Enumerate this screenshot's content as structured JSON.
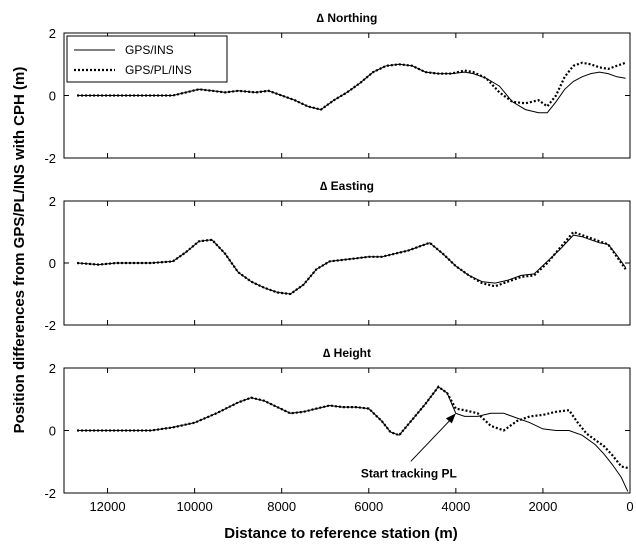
{
  "chart_data": {
    "type": "line",
    "ylabel": "Position differences from GPS/PL/INS with CPH (m)",
    "xlabel": "Distance to reference station (m)",
    "xlim": [
      13000,
      0
    ],
    "x_ticks": [
      12000,
      10000,
      8000,
      6000,
      4000,
      2000,
      0
    ],
    "x_tick_labels": [
      "12000",
      "10000",
      "8000",
      "6000",
      "4000",
      "2000",
      "0"
    ],
    "legend": {
      "placement": "top-left of first panel",
      "entries": [
        {
          "label": "GPS/INS",
          "style": "solid"
        },
        {
          "label": "GPS/PL/INS",
          "style": "dotted"
        }
      ]
    },
    "panels": [
      {
        "title": "∆ Northing",
        "ylim": [
          -2,
          2
        ],
        "y_ticks": [
          2,
          0,
          -2
        ],
        "y_tick_labels": [
          "2",
          "0",
          "-2"
        ],
        "series": [
          {
            "name": "GPS/INS",
            "style": "solid",
            "x": [
              12700,
              11500,
              10500,
              10200,
              9900,
              9600,
              9300,
              9000,
              8600,
              8300,
              8000,
              7700,
              7400,
              7100,
              6800,
              6500,
              6200,
              5900,
              5600,
              5300,
              5000,
              4700,
              4400,
              4100,
              3800,
              3600,
              3300,
              3000,
              2700,
              2400,
              2100,
              1900,
              1700,
              1500,
              1300,
              1100,
              900,
              700,
              500,
              300,
              100
            ],
            "y": [
              0.0,
              0.0,
              0.0,
              0.1,
              0.2,
              0.15,
              0.1,
              0.15,
              0.1,
              0.15,
              0.0,
              -0.15,
              -0.35,
              -0.45,
              -0.15,
              0.1,
              0.4,
              0.75,
              0.95,
              1.0,
              0.95,
              0.75,
              0.7,
              0.7,
              0.75,
              0.7,
              0.55,
              0.3,
              -0.2,
              -0.45,
              -0.55,
              -0.55,
              -0.2,
              0.2,
              0.45,
              0.6,
              0.7,
              0.75,
              0.7,
              0.6,
              0.55
            ]
          },
          {
            "name": "GPS/PL/INS",
            "style": "dotted",
            "x": [
              12700,
              11500,
              10500,
              10200,
              9900,
              9600,
              9300,
              9000,
              8600,
              8300,
              8000,
              7700,
              7400,
              7100,
              6800,
              6500,
              6200,
              5900,
              5600,
              5300,
              5000,
              4700,
              4400,
              4100,
              3800,
              3600,
              3300,
              3000,
              2700,
              2400,
              2100,
              1900,
              1700,
              1500,
              1300,
              1100,
              900,
              700,
              500,
              300,
              100
            ],
            "y": [
              0.0,
              0.0,
              0.0,
              0.1,
              0.2,
              0.15,
              0.1,
              0.15,
              0.1,
              0.15,
              0.0,
              -0.15,
              -0.35,
              -0.45,
              -0.15,
              0.1,
              0.4,
              0.75,
              0.95,
              1.0,
              0.95,
              0.75,
              0.7,
              0.7,
              0.8,
              0.75,
              0.55,
              0.1,
              -0.2,
              -0.25,
              -0.15,
              -0.35,
              0.0,
              0.6,
              0.95,
              1.05,
              1.0,
              0.9,
              0.85,
              0.95,
              1.05
            ]
          }
        ]
      },
      {
        "title": "∆ Easting",
        "ylim": [
          -2,
          2
        ],
        "y_ticks": [
          2,
          0,
          -2
        ],
        "y_tick_labels": [
          "2",
          "0",
          "-2"
        ],
        "series": [
          {
            "name": "GPS/INS",
            "style": "solid",
            "x": [
              12700,
              12200,
              11800,
              11000,
              10500,
              10200,
              9900,
              9600,
              9300,
              9000,
              8700,
              8400,
              8100,
              7800,
              7500,
              7200,
              6900,
              6600,
              6300,
              6000,
              5700,
              5400,
              5100,
              4800,
              4600,
              4300,
              4000,
              3700,
              3400,
              3100,
              2800,
              2500,
              2200,
              1900,
              1600,
              1300,
              1100,
              900,
              700,
              500,
              300,
              100
            ],
            "y": [
              0.0,
              -0.05,
              0.0,
              0.0,
              0.05,
              0.35,
              0.7,
              0.75,
              0.3,
              -0.3,
              -0.6,
              -0.8,
              -0.95,
              -1.0,
              -0.7,
              -0.2,
              0.05,
              0.1,
              0.15,
              0.2,
              0.2,
              0.3,
              0.4,
              0.55,
              0.65,
              0.3,
              -0.1,
              -0.4,
              -0.6,
              -0.65,
              -0.55,
              -0.4,
              -0.35,
              0.05,
              0.45,
              0.9,
              0.85,
              0.75,
              0.65,
              0.6,
              0.25,
              -0.15
            ]
          },
          {
            "name": "GPS/PL/INS",
            "style": "dotted",
            "x": [
              12700,
              12200,
              11800,
              11000,
              10500,
              10200,
              9900,
              9600,
              9300,
              9000,
              8700,
              8400,
              8100,
              7800,
              7500,
              7200,
              6900,
              6600,
              6300,
              6000,
              5700,
              5400,
              5100,
              4800,
              4600,
              4300,
              4000,
              3700,
              3400,
              3100,
              2800,
              2500,
              2200,
              1900,
              1600,
              1300,
              1100,
              900,
              700,
              500,
              300,
              100
            ],
            "y": [
              0.0,
              -0.05,
              0.0,
              0.0,
              0.05,
              0.35,
              0.7,
              0.75,
              0.3,
              -0.3,
              -0.6,
              -0.8,
              -0.95,
              -1.0,
              -0.7,
              -0.2,
              0.05,
              0.1,
              0.15,
              0.2,
              0.2,
              0.3,
              0.4,
              0.55,
              0.65,
              0.3,
              -0.1,
              -0.4,
              -0.65,
              -0.75,
              -0.6,
              -0.45,
              -0.4,
              0.0,
              0.5,
              1.0,
              0.9,
              0.8,
              0.7,
              0.6,
              0.2,
              -0.2
            ]
          }
        ]
      },
      {
        "title": "∆ Height",
        "ylim": [
          -2,
          2
        ],
        "y_ticks": [
          2,
          0,
          -2
        ],
        "y_tick_labels": [
          "2",
          "0",
          "-2"
        ],
        "annotation": {
          "text": "Start tracking PL",
          "points_to_x": 4000,
          "points_to_y": 0.55
        },
        "series": [
          {
            "name": "GPS/INS",
            "style": "solid",
            "x": [
              12700,
              12000,
              11000,
              10500,
              10000,
              9500,
              9000,
              8700,
              8400,
              8100,
              7800,
              7500,
              7200,
              6900,
              6600,
              6300,
              6000,
              5700,
              5500,
              5300,
              5000,
              4700,
              4400,
              4200,
              4000,
              3800,
              3500,
              3200,
              2900,
              2600,
              2300,
              2000,
              1700,
              1400,
              1100,
              800,
              600,
              400,
              200,
              50
            ],
            "y": [
              0.0,
              0.0,
              0.0,
              0.1,
              0.25,
              0.55,
              0.9,
              1.05,
              0.95,
              0.75,
              0.55,
              0.6,
              0.7,
              0.8,
              0.75,
              0.75,
              0.7,
              0.3,
              -0.05,
              -0.15,
              0.35,
              0.85,
              1.4,
              1.2,
              0.55,
              0.45,
              0.45,
              0.55,
              0.55,
              0.4,
              0.25,
              0.05,
              0.0,
              0.0,
              -0.15,
              -0.45,
              -0.75,
              -1.1,
              -1.5,
              -1.95
            ]
          },
          {
            "name": "GPS/PL/INS",
            "style": "dotted",
            "x": [
              12700,
              12000,
              11000,
              10500,
              10000,
              9500,
              9000,
              8700,
              8400,
              8100,
              7800,
              7500,
              7200,
              6900,
              6600,
              6300,
              6000,
              5700,
              5500,
              5300,
              5000,
              4700,
              4400,
              4200,
              4000,
              3800,
              3500,
              3200,
              2900,
              2600,
              2300,
              2000,
              1700,
              1400,
              1200,
              1000,
              800,
              600,
              400,
              200,
              50
            ],
            "y": [
              0.0,
              0.0,
              0.0,
              0.1,
              0.25,
              0.55,
              0.9,
              1.05,
              0.95,
              0.75,
              0.55,
              0.6,
              0.7,
              0.8,
              0.75,
              0.75,
              0.7,
              0.3,
              -0.05,
              -0.15,
              0.35,
              0.85,
              1.4,
              1.2,
              0.7,
              0.65,
              0.55,
              0.15,
              0.0,
              0.3,
              0.45,
              0.5,
              0.6,
              0.65,
              0.25,
              -0.1,
              -0.3,
              -0.5,
              -0.8,
              -1.15,
              -1.2
            ]
          }
        ]
      }
    ]
  }
}
